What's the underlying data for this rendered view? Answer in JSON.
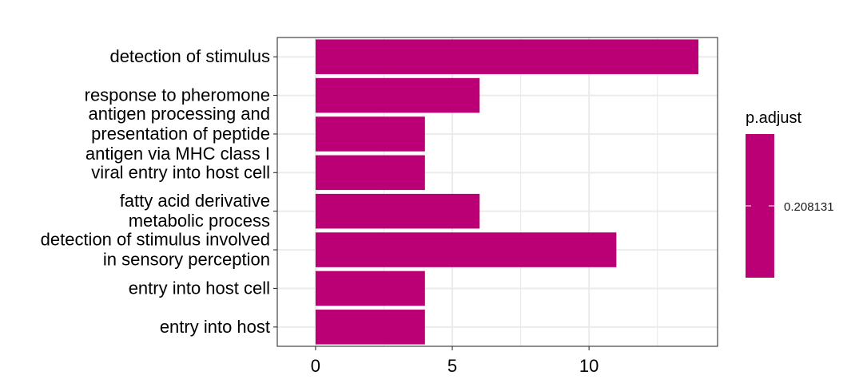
{
  "chart_data": {
    "type": "bar",
    "orientation": "horizontal",
    "categories": [
      [
        "detection of stimulus"
      ],
      [
        "response to pheromone"
      ],
      [
        "antigen processing and",
        "presentation of peptide",
        "antigen via MHC class I"
      ],
      [
        "viral entry into host cell"
      ],
      [
        "fatty acid derivative",
        "metabolic process"
      ],
      [
        "detection of stimulus involved",
        "in sensory perception"
      ],
      [
        "entry into host cell"
      ],
      [
        "entry into host"
      ]
    ],
    "values": [
      14,
      6,
      4,
      4,
      6,
      11,
      4,
      4
    ],
    "xlim": [
      -1.4,
      14.7
    ],
    "x_ticks": [
      0,
      5,
      10
    ],
    "x_tick_labels": [
      "0",
      "5",
      "10"
    ],
    "grid": true,
    "bar_color": "#BA0074",
    "legend": {
      "title": "p.adjust",
      "placement": "right",
      "label": "0.208131",
      "color": "#BA0074"
    }
  }
}
